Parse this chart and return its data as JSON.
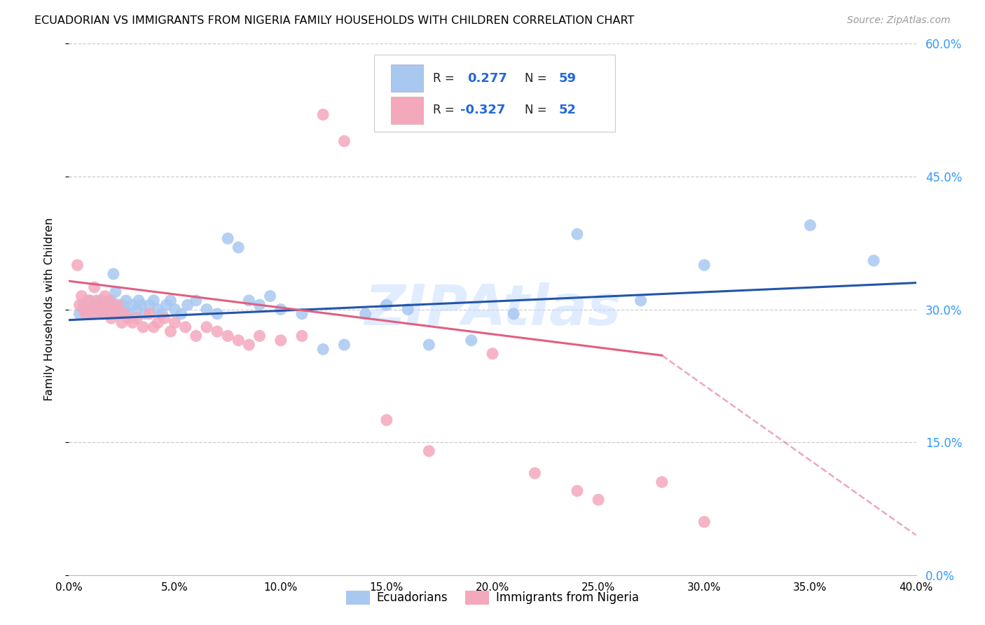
{
  "title": "ECUADORIAN VS IMMIGRANTS FROM NIGERIA FAMILY HOUSEHOLDS WITH CHILDREN CORRELATION CHART",
  "source": "Source: ZipAtlas.com",
  "ylabel": "Family Households with Children",
  "xmin": 0.0,
  "xmax": 0.4,
  "ymin": 0.0,
  "ymax": 0.6,
  "watermark": "ZIPAtlas",
  "blue_color": "#A8C8F0",
  "pink_color": "#F4A8BC",
  "blue_line_color": "#2255AA",
  "pink_line_color": "#E06080",
  "blue_scatter": [
    [
      0.005,
      0.295
    ],
    [
      0.007,
      0.305
    ],
    [
      0.008,
      0.3
    ],
    [
      0.009,
      0.295
    ],
    [
      0.01,
      0.31
    ],
    [
      0.011,
      0.3
    ],
    [
      0.012,
      0.295
    ],
    [
      0.013,
      0.305
    ],
    [
      0.014,
      0.3
    ],
    [
      0.015,
      0.31
    ],
    [
      0.016,
      0.295
    ],
    [
      0.017,
      0.305
    ],
    [
      0.018,
      0.3
    ],
    [
      0.019,
      0.295
    ],
    [
      0.02,
      0.31
    ],
    [
      0.021,
      0.34
    ],
    [
      0.022,
      0.32
    ],
    [
      0.023,
      0.3
    ],
    [
      0.024,
      0.295
    ],
    [
      0.025,
      0.305
    ],
    [
      0.026,
      0.3
    ],
    [
      0.027,
      0.31
    ],
    [
      0.028,
      0.295
    ],
    [
      0.03,
      0.305
    ],
    [
      0.032,
      0.3
    ],
    [
      0.033,
      0.31
    ],
    [
      0.034,
      0.305
    ],
    [
      0.036,
      0.295
    ],
    [
      0.038,
      0.305
    ],
    [
      0.04,
      0.31
    ],
    [
      0.042,
      0.3
    ],
    [
      0.044,
      0.295
    ],
    [
      0.046,
      0.305
    ],
    [
      0.048,
      0.31
    ],
    [
      0.05,
      0.3
    ],
    [
      0.053,
      0.295
    ],
    [
      0.056,
      0.305
    ],
    [
      0.06,
      0.31
    ],
    [
      0.065,
      0.3
    ],
    [
      0.07,
      0.295
    ],
    [
      0.075,
      0.38
    ],
    [
      0.08,
      0.37
    ],
    [
      0.085,
      0.31
    ],
    [
      0.09,
      0.305
    ],
    [
      0.095,
      0.315
    ],
    [
      0.1,
      0.3
    ],
    [
      0.11,
      0.295
    ],
    [
      0.12,
      0.255
    ],
    [
      0.13,
      0.26
    ],
    [
      0.14,
      0.295
    ],
    [
      0.15,
      0.305
    ],
    [
      0.16,
      0.3
    ],
    [
      0.17,
      0.26
    ],
    [
      0.19,
      0.265
    ],
    [
      0.21,
      0.295
    ],
    [
      0.24,
      0.385
    ],
    [
      0.27,
      0.31
    ],
    [
      0.3,
      0.35
    ],
    [
      0.35,
      0.395
    ],
    [
      0.38,
      0.355
    ]
  ],
  "pink_scatter": [
    [
      0.004,
      0.35
    ],
    [
      0.005,
      0.305
    ],
    [
      0.006,
      0.315
    ],
    [
      0.007,
      0.3
    ],
    [
      0.008,
      0.295
    ],
    [
      0.009,
      0.31
    ],
    [
      0.01,
      0.3
    ],
    [
      0.011,
      0.295
    ],
    [
      0.012,
      0.325
    ],
    [
      0.013,
      0.31
    ],
    [
      0.014,
      0.3
    ],
    [
      0.015,
      0.305
    ],
    [
      0.016,
      0.295
    ],
    [
      0.017,
      0.315
    ],
    [
      0.018,
      0.3
    ],
    [
      0.019,
      0.31
    ],
    [
      0.02,
      0.29
    ],
    [
      0.021,
      0.3
    ],
    [
      0.022,
      0.295
    ],
    [
      0.023,
      0.305
    ],
    [
      0.025,
      0.285
    ],
    [
      0.026,
      0.295
    ],
    [
      0.028,
      0.29
    ],
    [
      0.03,
      0.285
    ],
    [
      0.032,
      0.29
    ],
    [
      0.035,
      0.28
    ],
    [
      0.038,
      0.295
    ],
    [
      0.04,
      0.28
    ],
    [
      0.042,
      0.285
    ],
    [
      0.045,
      0.29
    ],
    [
      0.048,
      0.275
    ],
    [
      0.05,
      0.285
    ],
    [
      0.055,
      0.28
    ],
    [
      0.06,
      0.27
    ],
    [
      0.065,
      0.28
    ],
    [
      0.07,
      0.275
    ],
    [
      0.075,
      0.27
    ],
    [
      0.08,
      0.265
    ],
    [
      0.085,
      0.26
    ],
    [
      0.09,
      0.27
    ],
    [
      0.1,
      0.265
    ],
    [
      0.11,
      0.27
    ],
    [
      0.12,
      0.52
    ],
    [
      0.13,
      0.49
    ],
    [
      0.15,
      0.175
    ],
    [
      0.17,
      0.14
    ],
    [
      0.2,
      0.25
    ],
    [
      0.22,
      0.115
    ],
    [
      0.24,
      0.095
    ],
    [
      0.25,
      0.085
    ],
    [
      0.28,
      0.105
    ],
    [
      0.3,
      0.06
    ]
  ],
  "blue_line_x0": 0.0,
  "blue_line_y0": 0.288,
  "blue_line_x1": 0.4,
  "blue_line_y1": 0.33,
  "pink_line_x0": 0.0,
  "pink_line_y0": 0.332,
  "pink_line_x1_solid": 0.28,
  "pink_line_y1_solid": 0.248,
  "pink_line_x1_dash": 0.4,
  "pink_line_y1_dash": 0.045,
  "yticks": [
    0.0,
    0.15,
    0.3,
    0.45,
    0.6
  ],
  "ytick_labels": [
    "0.0%",
    "15.0%",
    "30.0%",
    "45.0%",
    "60.0%"
  ],
  "xticks": [
    0.0,
    0.05,
    0.1,
    0.15,
    0.2,
    0.25,
    0.3,
    0.35,
    0.4
  ],
  "xtick_labels": [
    "0.0%",
    "5.0%",
    "10.0%",
    "15.0%",
    "20.0%",
    "25.0%",
    "30.0%",
    "35.0%",
    "40.0%"
  ]
}
